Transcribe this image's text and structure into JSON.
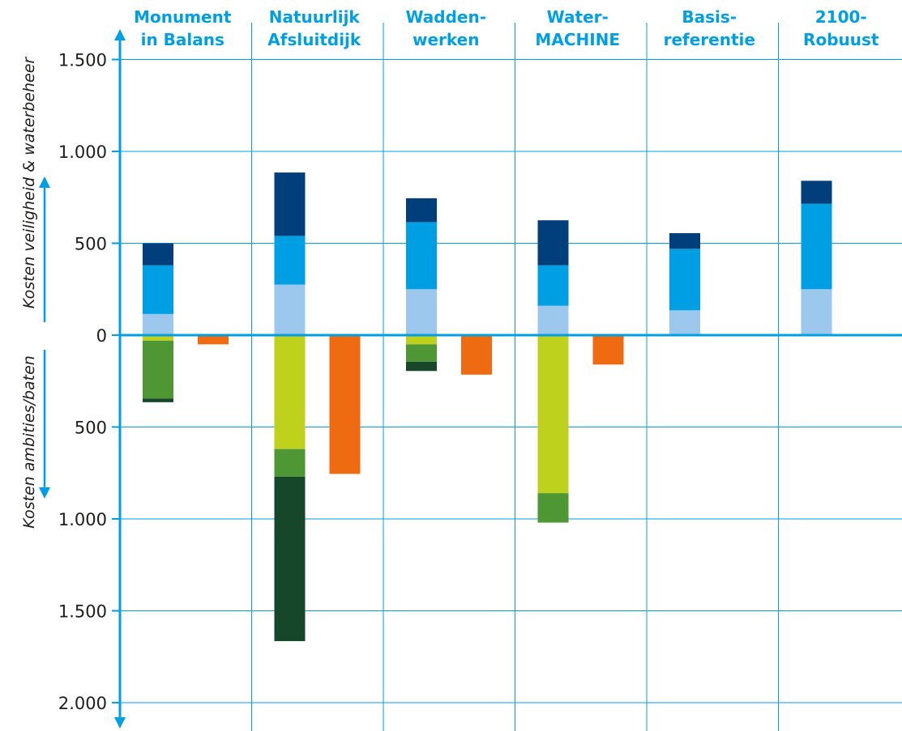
{
  "chart_data": {
    "type": "bar",
    "categories": [
      [
        "Monument",
        "in Balans"
      ],
      [
        "Natuurlijk",
        "Afsluitdijk"
      ],
      [
        "Wadden-",
        "werken"
      ],
      [
        "Water-",
        "MACHINE"
      ],
      [
        "Basis-",
        "referentie"
      ],
      [
        "2100-",
        "Robuust"
      ]
    ],
    "ylabel_top": "Kosten veiligheid & waterbeheer",
    "ylabel_bottom": "Kosten ambities/baten",
    "y_ticks": [
      {
        "value": 1500,
        "label": "1.500"
      },
      {
        "value": 1000,
        "label": "1.000"
      },
      {
        "value": 500,
        "label": "500"
      },
      {
        "value": 0,
        "label": "0"
      },
      {
        "value": -500,
        "label": "500"
      },
      {
        "value": -1000,
        "label": "1.000"
      },
      {
        "value": -1500,
        "label": "1.500"
      },
      {
        "value": -2000,
        "label": "2.000"
      }
    ],
    "ylim": [
      -2000,
      1500
    ],
    "colors": {
      "axis": "#009fe3",
      "grid": "#009fe3",
      "light_blue": "#9bc8ec",
      "blue": "#009fe3",
      "dark_blue": "#003f7b",
      "lime": "#bdd11d",
      "green": "#4f9635",
      "dark_green": "#16472a",
      "orange": "#ef6b12"
    },
    "stacks": [
      {
        "category": 0,
        "slot": "left",
        "segments": [
          {
            "from": 0,
            "to": 115,
            "color": "light_blue"
          },
          {
            "from": 115,
            "to": 380,
            "color": "blue"
          },
          {
            "from": 380,
            "to": 500,
            "color": "dark_blue"
          },
          {
            "from": 0,
            "to": -30,
            "color": "lime"
          },
          {
            "from": -30,
            "to": -345,
            "color": "green"
          },
          {
            "from": -345,
            "to": -365,
            "color": "dark_green"
          }
        ]
      },
      {
        "category": 0,
        "slot": "right",
        "segments": [
          {
            "from": 0,
            "to": -50,
            "color": "orange"
          }
        ]
      },
      {
        "category": 1,
        "slot": "left",
        "segments": [
          {
            "from": 0,
            "to": 275,
            "color": "light_blue"
          },
          {
            "from": 275,
            "to": 540,
            "color": "blue"
          },
          {
            "from": 540,
            "to": 885,
            "color": "dark_blue"
          },
          {
            "from": 0,
            "to": -620,
            "color": "lime"
          },
          {
            "from": -620,
            "to": -770,
            "color": "green"
          },
          {
            "from": -770,
            "to": -1665,
            "color": "dark_green"
          }
        ]
      },
      {
        "category": 1,
        "slot": "right",
        "segments": [
          {
            "from": 0,
            "to": -755,
            "color": "orange"
          }
        ]
      },
      {
        "category": 2,
        "slot": "left",
        "segments": [
          {
            "from": 0,
            "to": 250,
            "color": "light_blue"
          },
          {
            "from": 250,
            "to": 615,
            "color": "blue"
          },
          {
            "from": 615,
            "to": 745,
            "color": "dark_blue"
          },
          {
            "from": 0,
            "to": -50,
            "color": "lime"
          },
          {
            "from": -50,
            "to": -145,
            "color": "green"
          },
          {
            "from": -145,
            "to": -195,
            "color": "dark_green"
          }
        ]
      },
      {
        "category": 2,
        "slot": "right",
        "segments": [
          {
            "from": 0,
            "to": -215,
            "color": "orange"
          }
        ]
      },
      {
        "category": 3,
        "slot": "left",
        "segments": [
          {
            "from": 0,
            "to": 160,
            "color": "light_blue"
          },
          {
            "from": 160,
            "to": 380,
            "color": "blue"
          },
          {
            "from": 380,
            "to": 625,
            "color": "dark_blue"
          },
          {
            "from": 0,
            "to": -860,
            "color": "lime"
          },
          {
            "from": -860,
            "to": -1020,
            "color": "green"
          }
        ]
      },
      {
        "category": 3,
        "slot": "right",
        "segments": [
          {
            "from": 0,
            "to": -160,
            "color": "orange"
          }
        ]
      },
      {
        "category": 4,
        "slot": "left",
        "segments": [
          {
            "from": 0,
            "to": 135,
            "color": "light_blue"
          },
          {
            "from": 135,
            "to": 470,
            "color": "blue"
          },
          {
            "from": 470,
            "to": 555,
            "color": "dark_blue"
          }
        ]
      },
      {
        "category": 5,
        "slot": "left",
        "segments": [
          {
            "from": 0,
            "to": 250,
            "color": "light_blue"
          },
          {
            "from": 250,
            "to": 715,
            "color": "blue"
          },
          {
            "from": 715,
            "to": 840,
            "color": "dark_blue"
          }
        ]
      }
    ]
  }
}
